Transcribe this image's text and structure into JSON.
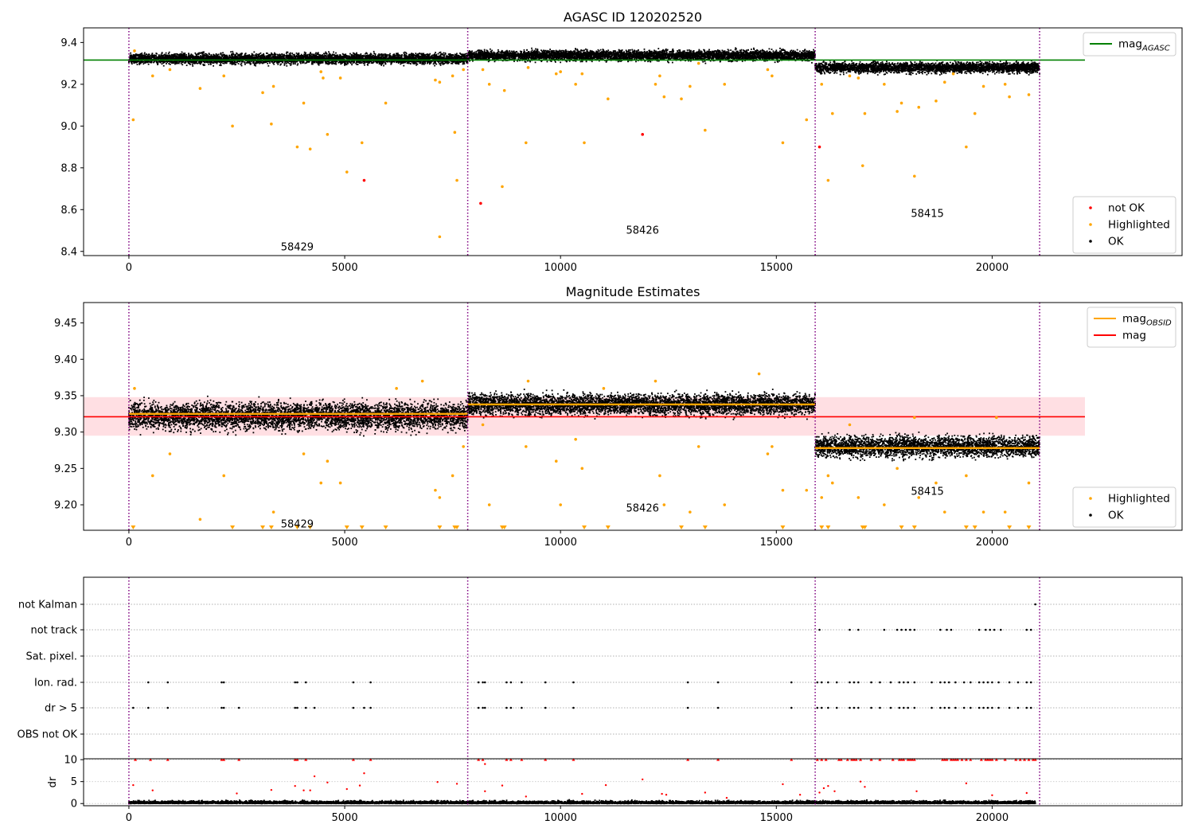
{
  "chart_data": [
    {
      "id": "panel1",
      "type": "scatter",
      "title": "AGASC ID 120202520",
      "xlabel": "",
      "ylabel": "",
      "xlim": [
        -1050,
        24400
      ],
      "ylim": [
        8.38,
        9.47
      ],
      "xticks": [
        0,
        5000,
        10000,
        15000,
        20000
      ],
      "yticks": [
        8.4,
        8.6,
        8.8,
        9.0,
        9.2,
        9.4
      ],
      "ytick_labels": [
        "8.4",
        "8.6",
        "8.8",
        "9.0",
        "9.2",
        "9.4"
      ],
      "legend_top": [
        {
          "label": "mag",
          "sub": "AGASC",
          "color": "#008000",
          "kind": "line"
        }
      ],
      "legend_bottom": [
        {
          "label": "not OK",
          "color": "#ff0000",
          "kind": "marker"
        },
        {
          "label": "Highlighted",
          "color": "#ffa500",
          "kind": "marker"
        },
        {
          "label": "OK",
          "color": "#000000",
          "kind": "marker"
        }
      ],
      "hlines": [
        {
          "y": 9.316,
          "x0": -1050,
          "x1": 22150,
          "color": "#008000",
          "name": "mag-agasc-line"
        }
      ],
      "bands": [],
      "boundaries": [
        0,
        7850,
        15900,
        21100
      ],
      "segment_labels": [
        {
          "text": "58429",
          "x": 3900,
          "y": 8.42
        },
        {
          "text": "58426",
          "x": 11900,
          "y": 8.5
        },
        {
          "text": "58415",
          "x": 18500,
          "y": 8.58
        }
      ],
      "ok_segments": [
        {
          "x0": 0,
          "x1": 7850,
          "mean": 9.322,
          "spread": 0.045
        },
        {
          "x0": 7850,
          "x1": 15900,
          "mean": 9.338,
          "spread": 0.045
        },
        {
          "x0": 15900,
          "x1": 21100,
          "mean": 9.28,
          "spread": 0.045
        }
      ],
      "highlighted_points": [
        [
          100,
          9.03
        ],
        [
          130,
          9.36
        ],
        [
          550,
          9.24
        ],
        [
          950,
          9.27
        ],
        [
          1650,
          9.18
        ],
        [
          2200,
          9.24
        ],
        [
          2400,
          9.0
        ],
        [
          3100,
          9.16
        ],
        [
          3300,
          9.01
        ],
        [
          3350,
          9.19
        ],
        [
          3900,
          8.9
        ],
        [
          4050,
          9.11
        ],
        [
          4200,
          8.89
        ],
        [
          4450,
          9.26
        ],
        [
          4500,
          9.23
        ],
        [
          4600,
          8.96
        ],
        [
          4900,
          9.23
        ],
        [
          5050,
          8.78
        ],
        [
          5400,
          8.92
        ],
        [
          5950,
          9.11
        ],
        [
          7100,
          9.22
        ],
        [
          7200,
          9.21
        ],
        [
          7200,
          8.47
        ],
        [
          7500,
          9.24
        ],
        [
          7550,
          8.97
        ],
        [
          7600,
          8.74
        ],
        [
          7750,
          9.27
        ],
        [
          8200,
          9.27
        ],
        [
          8350,
          9.2
        ],
        [
          8700,
          9.17
        ],
        [
          8650,
          8.71
        ],
        [
          9200,
          8.92
        ],
        [
          9250,
          9.28
        ],
        [
          9900,
          9.25
        ],
        [
          10000,
          9.26
        ],
        [
          10350,
          9.2
        ],
        [
          10500,
          9.25
        ],
        [
          10550,
          8.92
        ],
        [
          11100,
          9.13
        ],
        [
          12200,
          9.2
        ],
        [
          12300,
          9.24
        ],
        [
          12400,
          9.14
        ],
        [
          12800,
          9.13
        ],
        [
          13000,
          9.19
        ],
        [
          13200,
          9.3
        ],
        [
          13350,
          8.98
        ],
        [
          13800,
          9.2
        ],
        [
          14800,
          9.27
        ],
        [
          14900,
          9.24
        ],
        [
          15150,
          8.92
        ],
        [
          15700,
          9.03
        ],
        [
          16050,
          9.2
        ],
        [
          16200,
          8.74
        ],
        [
          16300,
          9.06
        ],
        [
          16700,
          9.24
        ],
        [
          16900,
          9.23
        ],
        [
          17000,
          8.81
        ],
        [
          17050,
          9.06
        ],
        [
          17500,
          9.2
        ],
        [
          17800,
          9.07
        ],
        [
          17900,
          9.11
        ],
        [
          18200,
          8.76
        ],
        [
          18300,
          9.09
        ],
        [
          18700,
          9.12
        ],
        [
          18900,
          9.21
        ],
        [
          19100,
          9.25
        ],
        [
          19400,
          8.9
        ],
        [
          19600,
          9.06
        ],
        [
          19800,
          9.19
        ],
        [
          20300,
          9.2
        ],
        [
          20400,
          9.14
        ],
        [
          20850,
          9.15
        ]
      ],
      "not_ok_points": [
        [
          5450,
          8.74
        ],
        [
          8150,
          8.63
        ],
        [
          11900,
          8.96
        ],
        [
          16000,
          8.9
        ]
      ]
    },
    {
      "id": "panel2",
      "type": "scatter",
      "title": "Magnitude Estimates",
      "xlabel": "",
      "ylabel": "",
      "xlim": [
        -1050,
        24400
      ],
      "ylim": [
        9.165,
        9.478
      ],
      "xticks": [
        0,
        5000,
        10000,
        15000,
        20000
      ],
      "yticks": [
        9.2,
        9.25,
        9.3,
        9.35,
        9.4,
        9.45
      ],
      "ytick_labels": [
        "9.20",
        "9.25",
        "9.30",
        "9.35",
        "9.40",
        "9.45"
      ],
      "legend_top": [
        {
          "label": "mag",
          "sub": "OBSID",
          "color": "#ffa500",
          "kind": "line"
        },
        {
          "label": "mag",
          "sub": "",
          "color": "#ff0000",
          "kind": "line"
        }
      ],
      "legend_bottom": [
        {
          "label": "Highlighted",
          "color": "#ffa500",
          "kind": "marker"
        },
        {
          "label": "OK",
          "color": "#000000",
          "kind": "marker"
        }
      ],
      "hlines": [
        {
          "y": 9.321,
          "x0": -1050,
          "x1": 22150,
          "color": "#ff0000",
          "name": "mag-line"
        },
        {
          "y": 9.325,
          "x0": 0,
          "x1": 7850,
          "color": "#ffa500",
          "name": "mag-obsid-line-1"
        },
        {
          "y": 9.338,
          "x0": 7850,
          "x1": 15900,
          "color": "#ffa500",
          "name": "mag-obsid-line-2"
        },
        {
          "y": 9.278,
          "x0": 15900,
          "x1": 21100,
          "color": "#ffa500",
          "name": "mag-obsid-line-3"
        }
      ],
      "bands": [
        {
          "y0": 9.295,
          "y1": 9.348,
          "x0": -1050,
          "x1": 22150,
          "color": "#ffc0c8"
        }
      ],
      "boundaries": [
        0,
        7850,
        15900,
        21100
      ],
      "segment_labels": [
        {
          "text": "58429",
          "x": 3900,
          "y": 9.173
        },
        {
          "text": "58426",
          "x": 11900,
          "y": 9.195
        },
        {
          "text": "58415",
          "x": 18500,
          "y": 9.218
        }
      ],
      "ok_segments": [
        {
          "x0": 0,
          "x1": 7850,
          "mean": 9.322,
          "spread": 0.034
        },
        {
          "x0": 7850,
          "x1": 15900,
          "mean": 9.338,
          "spread": 0.026
        },
        {
          "x0": 15900,
          "x1": 21100,
          "mean": 9.28,
          "spread": 0.026
        }
      ],
      "highlighted_points": [
        [
          130,
          9.36
        ],
        [
          550,
          9.24
        ],
        [
          950,
          9.27
        ],
        [
          1650,
          9.18
        ],
        [
          2200,
          9.24
        ],
        [
          3350,
          9.19
        ],
        [
          4050,
          9.27
        ],
        [
          4450,
          9.23
        ],
        [
          4600,
          9.26
        ],
        [
          4900,
          9.23
        ],
        [
          6200,
          9.36
        ],
        [
          6800,
          9.37
        ],
        [
          7100,
          9.22
        ],
        [
          7200,
          9.21
        ],
        [
          7500,
          9.24
        ],
        [
          7750,
          9.28
        ],
        [
          8200,
          9.31
        ],
        [
          8350,
          9.2
        ],
        [
          9200,
          9.28
        ],
        [
          9250,
          9.37
        ],
        [
          9900,
          9.26
        ],
        [
          10000,
          9.2
        ],
        [
          10350,
          9.29
        ],
        [
          10500,
          9.25
        ],
        [
          11000,
          9.36
        ],
        [
          12200,
          9.37
        ],
        [
          12300,
          9.24
        ],
        [
          12400,
          9.2
        ],
        [
          13000,
          9.19
        ],
        [
          13200,
          9.28
        ],
        [
          13800,
          9.2
        ],
        [
          14600,
          9.38
        ],
        [
          14800,
          9.27
        ],
        [
          14900,
          9.28
        ],
        [
          15150,
          9.22
        ],
        [
          15700,
          9.22
        ],
        [
          16050,
          9.21
        ],
        [
          16200,
          9.24
        ],
        [
          16300,
          9.23
        ],
        [
          16700,
          9.31
        ],
        [
          16900,
          9.21
        ],
        [
          17500,
          9.2
        ],
        [
          17800,
          9.25
        ],
        [
          18200,
          9.32
        ],
        [
          18300,
          9.21
        ],
        [
          18700,
          9.23
        ],
        [
          18900,
          9.19
        ],
        [
          19400,
          9.24
        ],
        [
          19800,
          9.19
        ],
        [
          20100,
          9.32
        ],
        [
          20300,
          9.19
        ],
        [
          20850,
          9.23
        ]
      ],
      "below_range_x": [
        100,
        2400,
        3100,
        3300,
        3900,
        4200,
        5050,
        5400,
        5950,
        7200,
        7550,
        7600,
        8650,
        8700,
        10550,
        11100,
        12800,
        13350,
        15150,
        16050,
        16200,
        17000,
        17050,
        17900,
        18200,
        19400,
        19600,
        20400,
        20850
      ],
      "not_ok_points": []
    },
    {
      "id": "panel3",
      "type": "scatter",
      "title": "",
      "xlabel": "",
      "ylabel": "",
      "xlim": [
        -1050,
        24400
      ],
      "categories": [
        "not Kalman",
        "not track",
        "Sat. pixel.",
        "Ion. rad.",
        "dr > 5",
        "OBS not OK"
      ],
      "boundaries": [
        0,
        7850,
        15900,
        21100
      ],
      "flag_points": {
        "not Kalman": [
          21000
        ],
        "not track": [
          16000,
          16700,
          16900,
          17500,
          17800,
          17900,
          18000,
          18100,
          18200,
          18800,
          18950,
          19050,
          19700,
          19850,
          19950,
          20050,
          20200,
          20800,
          20900
        ],
        "Sat. pixel.": [],
        "Ion. rad.": [
          450,
          900,
          2150,
          2200,
          3850,
          3900,
          4100,
          5200,
          5600,
          8100,
          8200,
          8250,
          8750,
          8850,
          9100,
          9650,
          10300,
          12950,
          13650,
          15350,
          15950,
          16050,
          16200,
          16400,
          16700,
          16800,
          16900,
          17200,
          17400,
          17650,
          17850,
          17950,
          18050,
          18200,
          18600,
          18800,
          18900,
          19000,
          19150,
          19350,
          19500,
          19700,
          19800,
          19900,
          20000,
          20150,
          20400,
          20600,
          20800,
          20900
        ],
        "dr > 5": [
          100,
          450,
          900,
          2150,
          2200,
          2550,
          3850,
          3900,
          4100,
          4300,
          5200,
          5450,
          5600,
          8100,
          8200,
          8250,
          8750,
          8850,
          9100,
          9650,
          10300,
          12950,
          13650,
          15350,
          15950,
          16050,
          16200,
          16400,
          16700,
          16800,
          16900,
          17200,
          17400,
          17650,
          17850,
          17950,
          18050,
          18200,
          18600,
          18800,
          18900,
          19000,
          19150,
          19350,
          19500,
          19700,
          19800,
          19900,
          20000,
          20150,
          20400,
          20600,
          20800,
          20900
        ],
        "OBS not OK": []
      }
    },
    {
      "id": "panel4",
      "type": "scatter",
      "title": "",
      "xlabel": "",
      "ylabel": "dr",
      "xlim": [
        -1050,
        24400
      ],
      "ylim": [
        -0.5,
        10.2
      ],
      "yticks": [
        0,
        5,
        10
      ],
      "ytick_labels": [
        "0",
        "5",
        "10"
      ],
      "xticks": [
        0,
        5000,
        10000,
        15000,
        20000
      ],
      "boundaries": [
        0,
        7850,
        15900,
        21100
      ],
      "base_range": [
        0,
        21000
      ],
      "outliers": [
        [
          100,
          4.2
        ],
        [
          550,
          3.0
        ],
        [
          2500,
          2.3
        ],
        [
          3300,
          3.1
        ],
        [
          3850,
          4.0
        ],
        [
          4050,
          3.0
        ],
        [
          4200,
          3.0
        ],
        [
          4300,
          6.2
        ],
        [
          4600,
          4.8
        ],
        [
          5050,
          3.3
        ],
        [
          5350,
          4.1
        ],
        [
          5450,
          6.9
        ],
        [
          7150,
          4.9
        ],
        [
          7600,
          4.5
        ],
        [
          8250,
          2.8
        ],
        [
          8250,
          9.0
        ],
        [
          8650,
          4.1
        ],
        [
          9200,
          1.6
        ],
        [
          10500,
          2.2
        ],
        [
          11050,
          4.2
        ],
        [
          11900,
          5.5
        ],
        [
          12350,
          2.2
        ],
        [
          12450,
          2.0
        ],
        [
          13350,
          2.5
        ],
        [
          13850,
          1.3
        ],
        [
          15150,
          4.4
        ],
        [
          15550,
          2.0
        ],
        [
          16000,
          2.5
        ],
        [
          16100,
          3.5
        ],
        [
          16200,
          4.0
        ],
        [
          16350,
          2.8
        ],
        [
          16950,
          5.0
        ],
        [
          17050,
          3.8
        ],
        [
          18250,
          2.8
        ],
        [
          19400,
          4.6
        ],
        [
          20000,
          1.9
        ],
        [
          20800,
          2.4
        ]
      ],
      "capped_x": [
        150,
        500,
        900,
        2150,
        2200,
        2550,
        3850,
        3900,
        4100,
        5200,
        5600,
        8100,
        8200,
        8750,
        8850,
        9100,
        9650,
        10300,
        12950,
        13650,
        15350,
        15950,
        16050,
        16150,
        16450,
        16500,
        16650,
        16750,
        16800,
        16850,
        16950,
        17200,
        17400,
        17700,
        17850,
        17900,
        17950,
        18050,
        18100,
        18150,
        18200,
        18850,
        18900,
        18950,
        19050,
        19100,
        19150,
        19200,
        19300,
        19400,
        19500,
        19750,
        19850,
        19900,
        19950,
        20000,
        20100,
        20300,
        20550,
        20650,
        20750,
        20850,
        20950,
        21000
      ]
    }
  ]
}
